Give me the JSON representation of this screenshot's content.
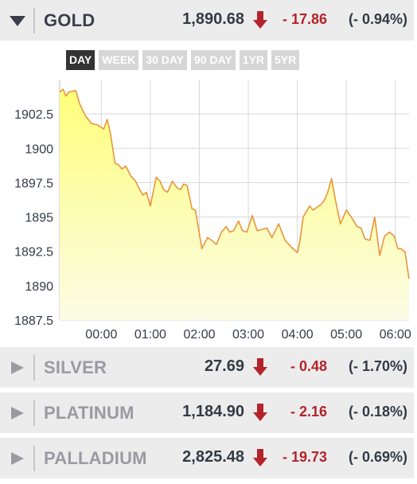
{
  "metals": [
    {
      "name": "GOLD",
      "price": "1,890.68",
      "change": "- 17.86",
      "percent": "(- 0.94%)",
      "expanded": true
    },
    {
      "name": "SILVER",
      "price": "27.69",
      "change": "- 0.48",
      "percent": "(- 1.70%)",
      "expanded": false
    },
    {
      "name": "PLATINUM",
      "price": "1,184.90",
      "change": "- 2.16",
      "percent": "(- 0.18%)",
      "expanded": false
    },
    {
      "name": "PALLADIUM",
      "price": "2,825.48",
      "change": "- 19.73",
      "percent": "(- 0.69%)",
      "expanded": false
    }
  ],
  "ranges": [
    "DAY",
    "WEEK",
    "30 DAY",
    "90 DAY",
    "1YR",
    "5YR"
  ],
  "active_range": "DAY",
  "colors": {
    "down": "#b4232b",
    "line": "#e8953a",
    "fill_top": "#ffff7a",
    "fill_bottom": "#fbfbe6",
    "grid": "#d8d8d8"
  },
  "chart_data": {
    "type": "area",
    "title": "",
    "xlabel": "",
    "ylabel": "",
    "ylim": [
      1887.5,
      1905
    ],
    "yticks": [
      "1902.5",
      "1900",
      "1897.5",
      "1895",
      "1892.5",
      "1890",
      "1887.5"
    ],
    "ytick_values": [
      1902.5,
      1900,
      1897.5,
      1895,
      1892.5,
      1890,
      1887.5
    ],
    "xticks": [
      "00:00",
      "01:00",
      "02:00",
      "03:00",
      "04:00",
      "05:00",
      "06:00"
    ],
    "xtick_hours": [
      0,
      1,
      2,
      3,
      4,
      5,
      6
    ],
    "xlim": [
      -0.85,
      6.28
    ],
    "grid": true,
    "series": [
      {
        "x": [
          -0.85,
          -0.78,
          -0.72,
          -0.66,
          -0.52,
          -0.45,
          -0.33,
          -0.2,
          -0.08,
          0.05,
          0.12,
          0.18,
          0.28,
          0.35,
          0.42,
          0.5,
          0.6,
          0.7,
          0.78,
          0.85,
          0.92,
          1.0,
          1.12,
          1.2,
          1.27,
          1.35,
          1.45,
          1.55,
          1.62,
          1.68,
          1.75,
          1.85,
          1.92,
          2.05,
          2.17,
          2.25,
          2.35,
          2.45,
          2.55,
          2.62,
          2.7,
          2.8,
          2.88,
          2.97,
          3.08,
          3.18,
          3.28,
          3.38,
          3.48,
          3.62,
          3.75,
          3.88,
          4.0,
          4.05,
          4.12,
          4.25,
          4.32,
          4.4,
          4.48,
          4.55,
          4.62,
          4.7,
          4.78,
          4.88,
          5.0,
          5.12,
          5.22,
          5.3,
          5.38,
          5.48,
          5.58,
          5.68,
          5.78,
          5.88,
          5.98,
          6.05,
          6.12,
          6.2,
          6.28
        ],
        "y": [
          1904.1,
          1904.3,
          1903.8,
          1904.1,
          1904.2,
          1903.3,
          1902.4,
          1901.8,
          1901.7,
          1901.4,
          1902.1,
          1901.2,
          1898.9,
          1898.8,
          1898.5,
          1898.7,
          1898.0,
          1897.6,
          1897.0,
          1896.6,
          1896.8,
          1895.8,
          1897.9,
          1897.6,
          1897.0,
          1896.8,
          1897.6,
          1897.1,
          1897.0,
          1897.4,
          1897.3,
          1895.6,
          1895.5,
          1892.7,
          1893.5,
          1893.3,
          1893.0,
          1893.9,
          1894.3,
          1893.9,
          1894.0,
          1894.7,
          1894.0,
          1893.9,
          1895.1,
          1894.0,
          1894.1,
          1894.2,
          1893.5,
          1894.5,
          1893.3,
          1892.8,
          1892.4,
          1893.2,
          1895.0,
          1895.8,
          1895.5,
          1895.7,
          1895.9,
          1896.2,
          1896.8,
          1897.8,
          1896.2,
          1894.5,
          1895.5,
          1894.9,
          1894.3,
          1894.2,
          1893.4,
          1893.3,
          1895.0,
          1892.2,
          1893.6,
          1893.9,
          1893.6,
          1892.7,
          1892.7,
          1892.4,
          1890.5
        ]
      }
    ]
  }
}
